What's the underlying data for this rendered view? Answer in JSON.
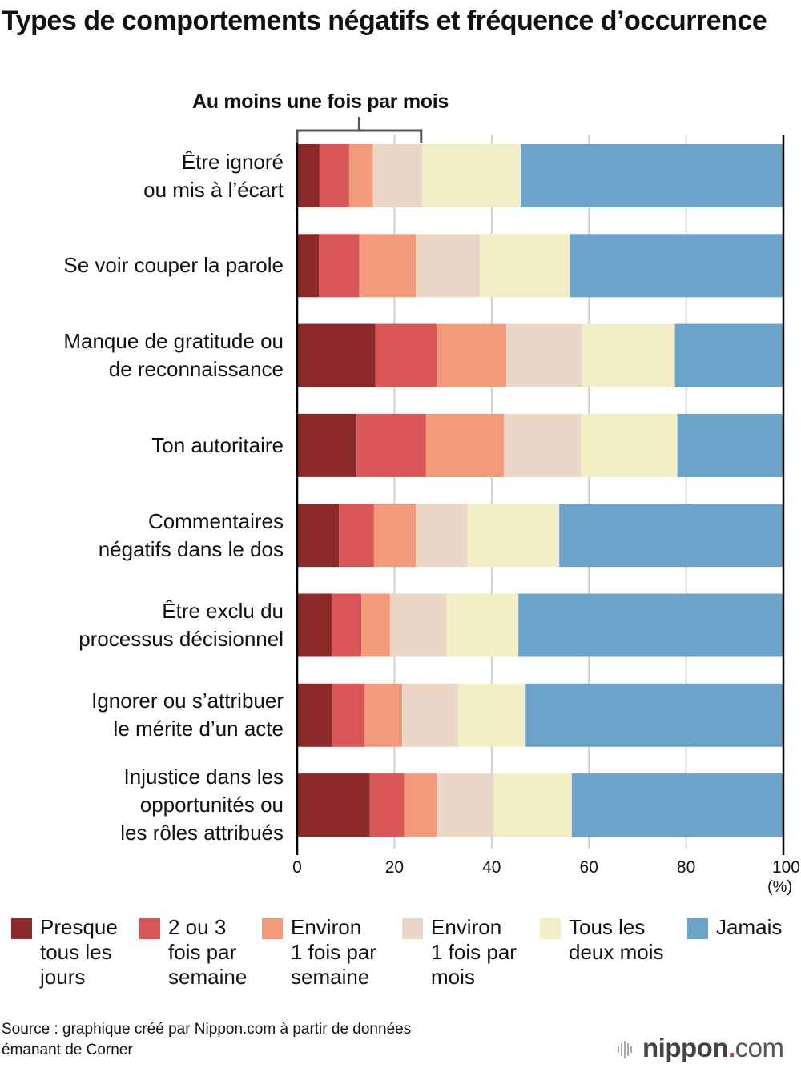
{
  "title": "Types de comportements négatifs et fréquence d’occurrence",
  "bracket_label": "Au moins une fois par mois",
  "chart_data": {
    "type": "bar",
    "orientation": "horizontal-stacked",
    "title": "Types de comportements négatifs et fréquence d’occurrence",
    "xlabel": "(%)",
    "ylabel": "",
    "xlim": [
      0,
      100
    ],
    "xticks": [
      0,
      20,
      40,
      60,
      80,
      100
    ],
    "grid": true,
    "legend_position": "bottom",
    "annotation": {
      "text": "Au moins une fois par mois",
      "span": [
        0,
        25.5
      ]
    },
    "categories": [
      "Être ignoré\nou mis à l’écart",
      "Se voir couper la parole",
      "Manque de gratitude ou\nde reconnaissance",
      "Ton autoritaire",
      "Commentaires\nnégatifs dans le dos",
      "Être exclu du\nprocessus décisionnel",
      "Ignorer ou s’attribuer\nle mérite d’un acte",
      "Injustice dans les\nopportunités ou\nles rôles attribués"
    ],
    "series": [
      {
        "name": "Presque\ntous les\njours",
        "color": "#8b2828",
        "values": [
          4.6,
          4.5,
          16.1,
          12.2,
          8.6,
          7.1,
          7.3,
          14.9
        ]
      },
      {
        "name": "2 ou 3\nfois par\nsemaine",
        "color": "#da5656",
        "values": [
          6.1,
          8.3,
          12.6,
          14.3,
          7.2,
          6.1,
          6.6,
          7.1
        ]
      },
      {
        "name": "Environ\n1 fois par\nsemaine",
        "color": "#f29b7b",
        "values": [
          4.9,
          11.6,
          14.3,
          16.0,
          8.6,
          5.9,
          7.7,
          6.7
        ]
      },
      {
        "name": "Environ\n1 fois par\nmois",
        "color": "#ebd7c7",
        "values": [
          10.1,
          13.2,
          15.6,
          15.9,
          10.6,
          11.6,
          11.5,
          11.8
        ]
      },
      {
        "name": "Tous les\ndeux mois",
        "color": "#f2eec6",
        "values": [
          20.3,
          18.5,
          19.1,
          19.8,
          18.9,
          14.8,
          13.9,
          16.0
        ]
      },
      {
        "name": "Jamais",
        "color": "#6ba3cb",
        "values": [
          54.0,
          43.9,
          22.3,
          21.8,
          46.1,
          54.5,
          53.0,
          43.5
        ]
      }
    ]
  },
  "unit_label": "(%)",
  "source": "Source : graphique créé par Nippon.com à partir de données\némanant de Corner",
  "logo": {
    "name": "nippon",
    "dot": ".",
    "tld": "com"
  }
}
